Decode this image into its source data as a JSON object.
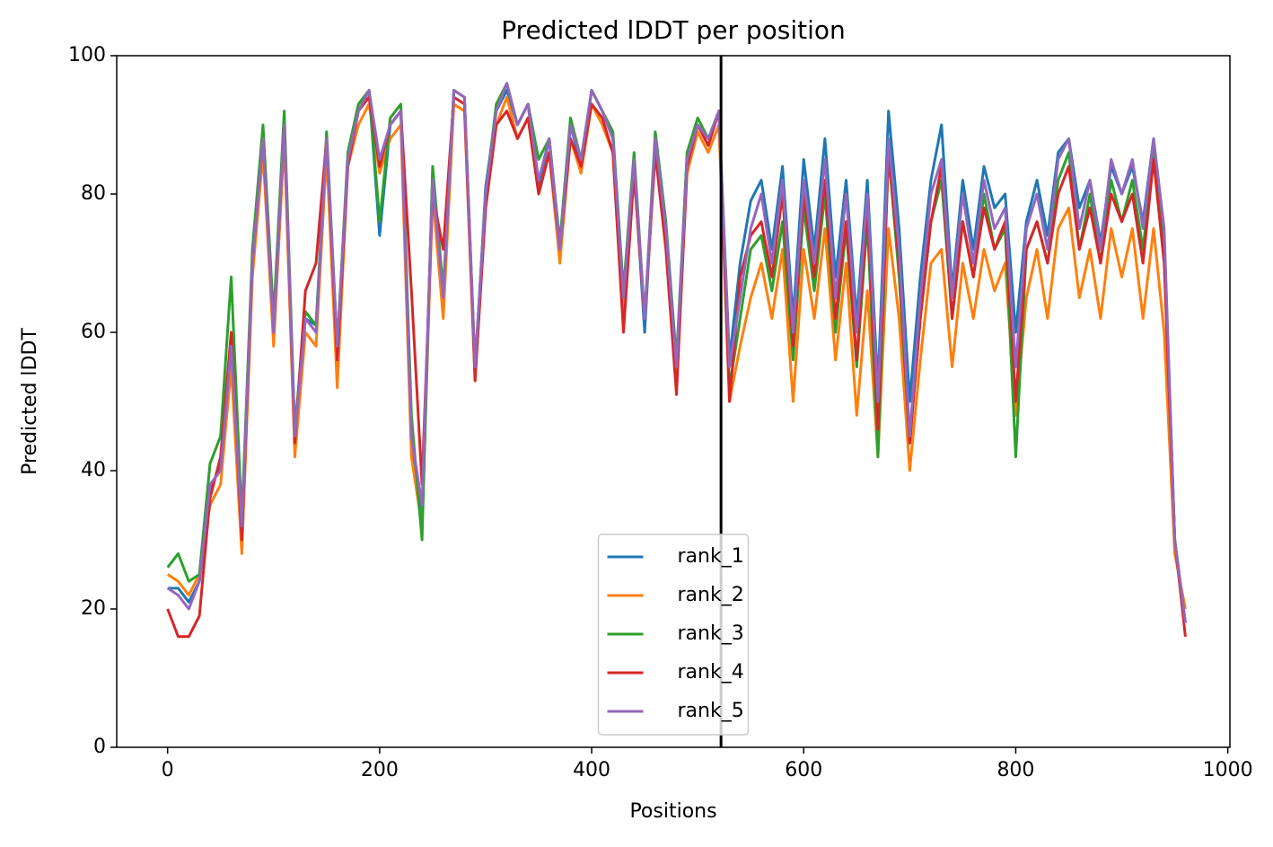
{
  "chart_data": {
    "type": "line",
    "title": "Predicted lDDT per position",
    "xlabel": "Positions",
    "ylabel": "Predicted lDDT",
    "x": [
      0,
      10,
      20,
      30,
      40,
      50,
      60,
      70,
      80,
      90,
      100,
      110,
      120,
      130,
      140,
      150,
      160,
      170,
      180,
      190,
      200,
      210,
      220,
      230,
      240,
      250,
      260,
      270,
      280,
      290,
      300,
      310,
      320,
      330,
      340,
      350,
      360,
      370,
      380,
      390,
      400,
      410,
      420,
      430,
      440,
      450,
      460,
      470,
      480,
      490,
      500,
      510,
      520,
      530,
      540,
      550,
      560,
      570,
      580,
      590,
      600,
      610,
      620,
      630,
      640,
      650,
      660,
      670,
      680,
      690,
      700,
      710,
      720,
      730,
      740,
      750,
      760,
      770,
      780,
      790,
      800,
      810,
      820,
      830,
      840,
      850,
      860,
      870,
      880,
      890,
      900,
      910,
      920,
      930,
      940,
      950,
      960
    ],
    "series": [
      {
        "name": "rank_1",
        "color": "#1f77b4",
        "values": [
          23,
          23,
          21,
          24,
          37,
          41,
          57,
          30,
          71,
          88,
          59,
          90,
          44,
          62,
          61,
          88,
          57,
          85,
          92,
          95,
          74,
          90,
          92,
          44,
          34,
          83,
          64,
          95,
          94,
          54,
          81,
          92,
          95,
          90,
          93,
          81,
          88,
          72,
          90,
          84,
          95,
          92,
          88,
          64,
          84,
          60,
          88,
          74,
          54,
          86,
          90,
          87,
          92,
          56,
          70,
          79,
          82,
          72,
          84,
          62,
          85,
          72,
          88,
          68,
          82,
          62,
          82,
          52,
          92,
          75,
          50,
          68,
          82,
          90,
          66,
          82,
          72,
          84,
          78,
          80,
          60,
          76,
          82,
          74,
          86,
          88,
          78,
          82,
          73,
          84,
          80,
          84,
          76,
          88,
          74,
          30,
          18
        ]
      },
      {
        "name": "rank_2",
        "color": "#ff7f0e",
        "values": [
          25,
          24,
          22,
          25,
          35,
          38,
          55,
          28,
          68,
          86,
          58,
          88,
          42,
          60,
          58,
          86,
          52,
          84,
          90,
          93,
          83,
          88,
          90,
          42,
          32,
          80,
          62,
          93,
          92,
          53,
          78,
          90,
          94,
          88,
          91,
          80,
          86,
          70,
          88,
          83,
          93,
          90,
          86,
          63,
          83,
          62,
          86,
          73,
          53,
          83,
          89,
          86,
          90,
          50,
          58,
          65,
          70,
          62,
          72,
          50,
          72,
          62,
          75,
          56,
          70,
          48,
          66,
          42,
          75,
          62,
          40,
          56,
          70,
          72,
          55,
          70,
          62,
          72,
          66,
          70,
          48,
          65,
          72,
          62,
          75,
          78,
          65,
          72,
          62,
          75,
          68,
          75,
          62,
          75,
          60,
          28,
          20
        ]
      },
      {
        "name": "rank_3",
        "color": "#2ca02c",
        "values": [
          26,
          28,
          24,
          25,
          41,
          45,
          68,
          33,
          72,
          90,
          62,
          92,
          46,
          63,
          61,
          89,
          58,
          86,
          93,
          95,
          76,
          91,
          93,
          48,
          30,
          84,
          66,
          95,
          94,
          55,
          80,
          93,
          96,
          90,
          93,
          85,
          88,
          73,
          91,
          85,
          95,
          92,
          89,
          66,
          86,
          62,
          89,
          76,
          56,
          86,
          91,
          88,
          92,
          52,
          62,
          72,
          74,
          66,
          76,
          56,
          78,
          66,
          80,
          60,
          75,
          55,
          76,
          42,
          86,
          68,
          44,
          62,
          76,
          82,
          62,
          76,
          68,
          80,
          72,
          75,
          42,
          72,
          76,
          70,
          82,
          86,
          72,
          80,
          70,
          82,
          76,
          82,
          72,
          86,
          72,
          30,
          18
        ]
      },
      {
        "name": "rank_4",
        "color": "#d62728",
        "values": [
          20,
          16,
          16,
          19,
          36,
          42,
          60,
          30,
          70,
          88,
          60,
          90,
          44,
          66,
          70,
          88,
          56,
          84,
          92,
          94,
          84,
          90,
          92,
          66,
          38,
          80,
          72,
          94,
          93,
          53,
          78,
          90,
          92,
          88,
          91,
          80,
          86,
          72,
          88,
          84,
          93,
          91,
          86,
          60,
          83,
          62,
          86,
          72,
          51,
          84,
          90,
          87,
          92,
          50,
          68,
          74,
          76,
          68,
          80,
          58,
          80,
          68,
          82,
          62,
          76,
          56,
          78,
          46,
          86,
          70,
          44,
          62,
          76,
          84,
          62,
          76,
          68,
          78,
          72,
          76,
          50,
          72,
          76,
          70,
          80,
          84,
          72,
          78,
          70,
          80,
          76,
          80,
          70,
          85,
          70,
          30,
          16
        ]
      },
      {
        "name": "rank_5",
        "color": "#9467bd",
        "values": [
          23,
          22,
          20,
          24,
          38,
          40,
          58,
          32,
          70,
          88,
          60,
          90,
          45,
          62,
          60,
          88,
          58,
          85,
          92,
          95,
          85,
          90,
          92,
          45,
          35,
          82,
          65,
          95,
          94,
          55,
          80,
          92,
          96,
          90,
          93,
          82,
          88,
          72,
          90,
          85,
          95,
          92,
          88,
          65,
          85,
          62,
          88,
          75,
          55,
          85,
          90,
          88,
          92,
          55,
          65,
          75,
          80,
          70,
          82,
          60,
          82,
          70,
          85,
          65,
          80,
          60,
          80,
          50,
          88,
          72,
          45,
          65,
          80,
          85,
          65,
          80,
          70,
          82,
          75,
          78,
          55,
          75,
          80,
          72,
          85,
          88,
          75,
          82,
          72,
          85,
          80,
          85,
          75,
          88,
          75,
          30,
          18
        ]
      }
    ],
    "vlines": [
      522
    ],
    "xlim": [
      -48,
      1002
    ],
    "xticks": [
      0,
      200,
      400,
      600,
      800,
      1000
    ],
    "ylim": [
      0,
      100
    ],
    "yticks": [
      0,
      20,
      40,
      60,
      80,
      100
    ],
    "legend": "lower center"
  }
}
